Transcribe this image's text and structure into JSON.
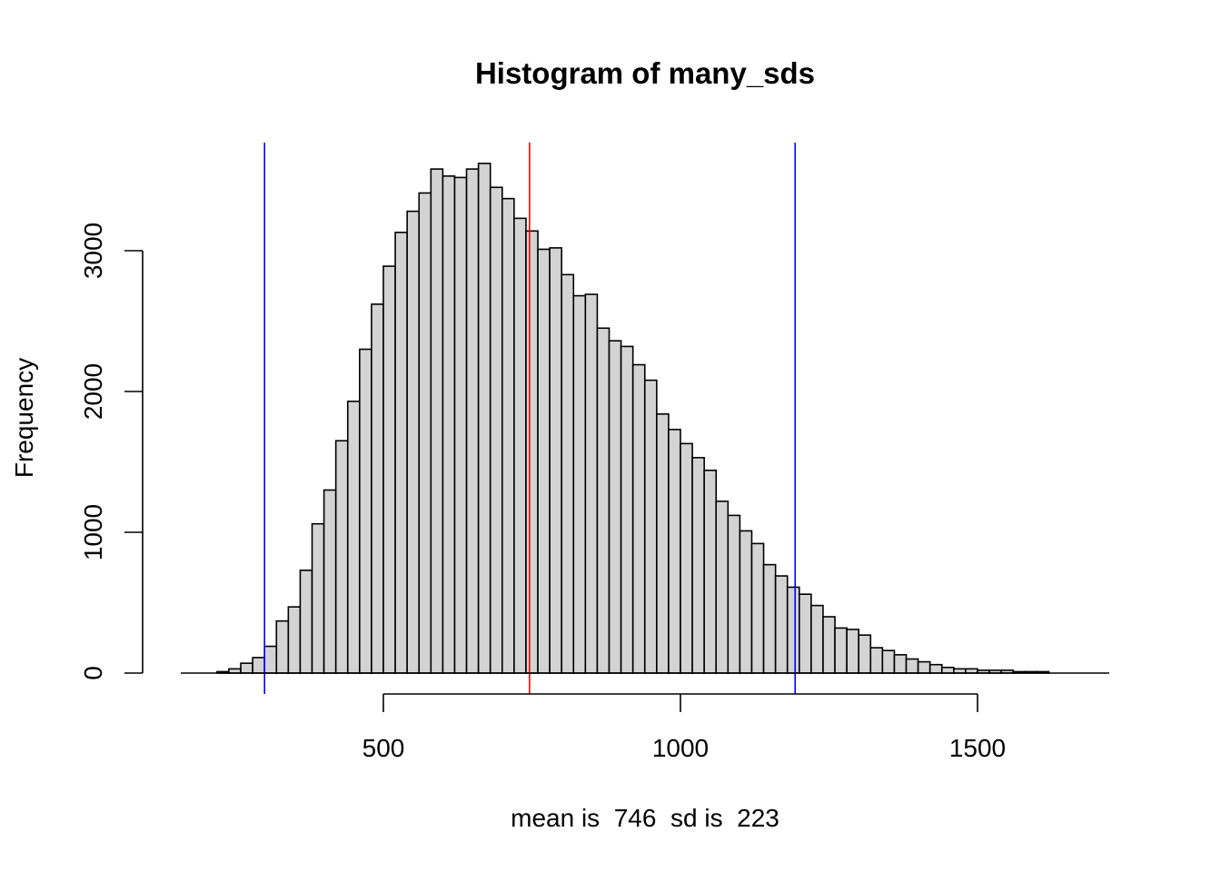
{
  "chart_data": {
    "type": "bar",
    "title": "Histogram of many_sds",
    "xlabel": "mean is  746  sd is  223",
    "ylabel": "Frequency",
    "bin_start": 200,
    "bin_width": 20,
    "values": [
      0,
      10,
      30,
      70,
      110,
      190,
      370,
      470,
      730,
      1060,
      1300,
      1650,
      1930,
      2300,
      2620,
      2890,
      3130,
      3280,
      3410,
      3580,
      3530,
      3520,
      3580,
      3620,
      3450,
      3370,
      3230,
      3140,
      3010,
      3020,
      2830,
      2680,
      2690,
      2450,
      2360,
      2320,
      2190,
      2080,
      1840,
      1730,
      1630,
      1530,
      1440,
      1220,
      1120,
      1010,
      920,
      770,
      690,
      610,
      560,
      480,
      400,
      320,
      310,
      270,
      180,
      160,
      130,
      100,
      80,
      60,
      40,
      30,
      30,
      20,
      20,
      20,
      10,
      10,
      10,
      0
    ],
    "xlim": [
      200,
      1650
    ],
    "ylim": [
      0,
      3620
    ],
    "x_ticks": [
      500,
      1000,
      1500
    ],
    "y_ticks": [
      0,
      1000,
      2000,
      3000
    ],
    "vlines": [
      {
        "x": 300,
        "color": "#0000ff"
      },
      {
        "x": 746,
        "color": "#ff0000"
      },
      {
        "x": 1193,
        "color": "#0000ff"
      }
    ],
    "bar_fill": "#d3d3d3",
    "bar_stroke": "#000000",
    "grid": false
  }
}
